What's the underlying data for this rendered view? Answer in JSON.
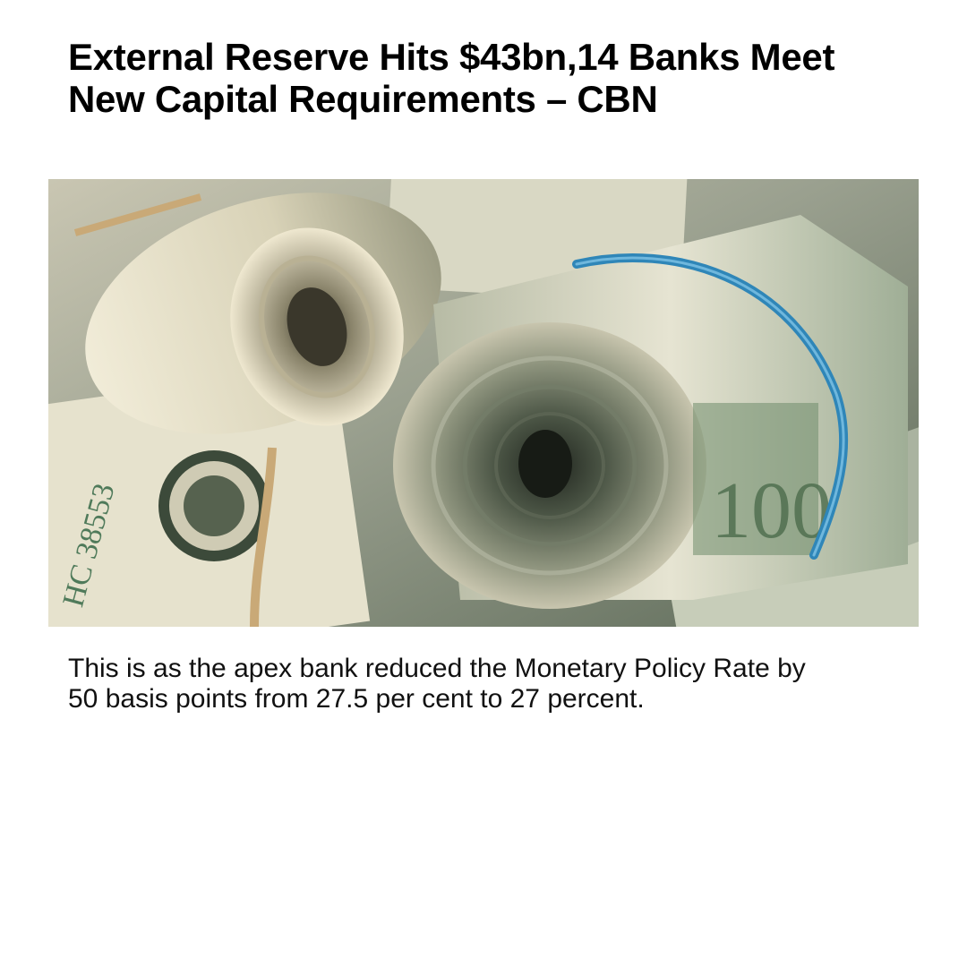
{
  "article": {
    "headline_line1": "External Reserve Hits $43bn,14 Banks Meet",
    "headline_line2": "New Capital Requirements – CBN",
    "summary_line1": "This is as the apex bank reduced the Monetary Policy Rate by",
    "summary_line2": "50 basis points from 27.5 per cent to 27 percent."
  },
  "hero_image": {
    "subject": "rolled-up US dollar banknotes",
    "colors": {
      "note_cream": "#e8e3cf",
      "note_green": "#5f7a5d",
      "band_blue": "#2f86b8",
      "band_tan": "#c9a977",
      "shadow": "#3a3f36"
    }
  }
}
